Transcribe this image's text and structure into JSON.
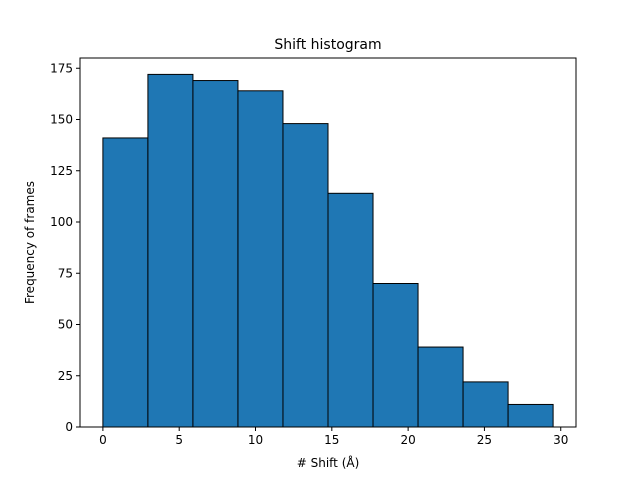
{
  "chart_data": {
    "type": "bar",
    "title": "Shift histogram",
    "xlabel": "# Shift (Å)",
    "ylabel": "Frequency of frames",
    "xlim": [
      -1.5,
      31
    ],
    "ylim": [
      0,
      180
    ],
    "grid": false,
    "bar_color": "#1f77b4",
    "edge_color": "#000000",
    "bin_edges": [
      0,
      2.95,
      5.9,
      8.85,
      11.8,
      14.75,
      17.7,
      20.65,
      23.6,
      26.55,
      29.5
    ],
    "values": [
      141,
      172,
      169,
      164,
      148,
      114,
      70,
      39,
      22,
      11
    ],
    "x_ticks": [
      {
        "value": 0,
        "label": "0"
      },
      {
        "value": 5,
        "label": "5"
      },
      {
        "value": 10,
        "label": "10"
      },
      {
        "value": 15,
        "label": "15"
      },
      {
        "value": 20,
        "label": "20"
      },
      {
        "value": 25,
        "label": "25"
      },
      {
        "value": 30,
        "label": "30"
      }
    ],
    "y_ticks": [
      {
        "value": 0,
        "label": "0"
      },
      {
        "value": 25,
        "label": "25"
      },
      {
        "value": 50,
        "label": "50"
      },
      {
        "value": 75,
        "label": "75"
      },
      {
        "value": 100,
        "label": "100"
      },
      {
        "value": 125,
        "label": "125"
      },
      {
        "value": 150,
        "label": "150"
      },
      {
        "value": 175,
        "label": "175"
      }
    ]
  }
}
